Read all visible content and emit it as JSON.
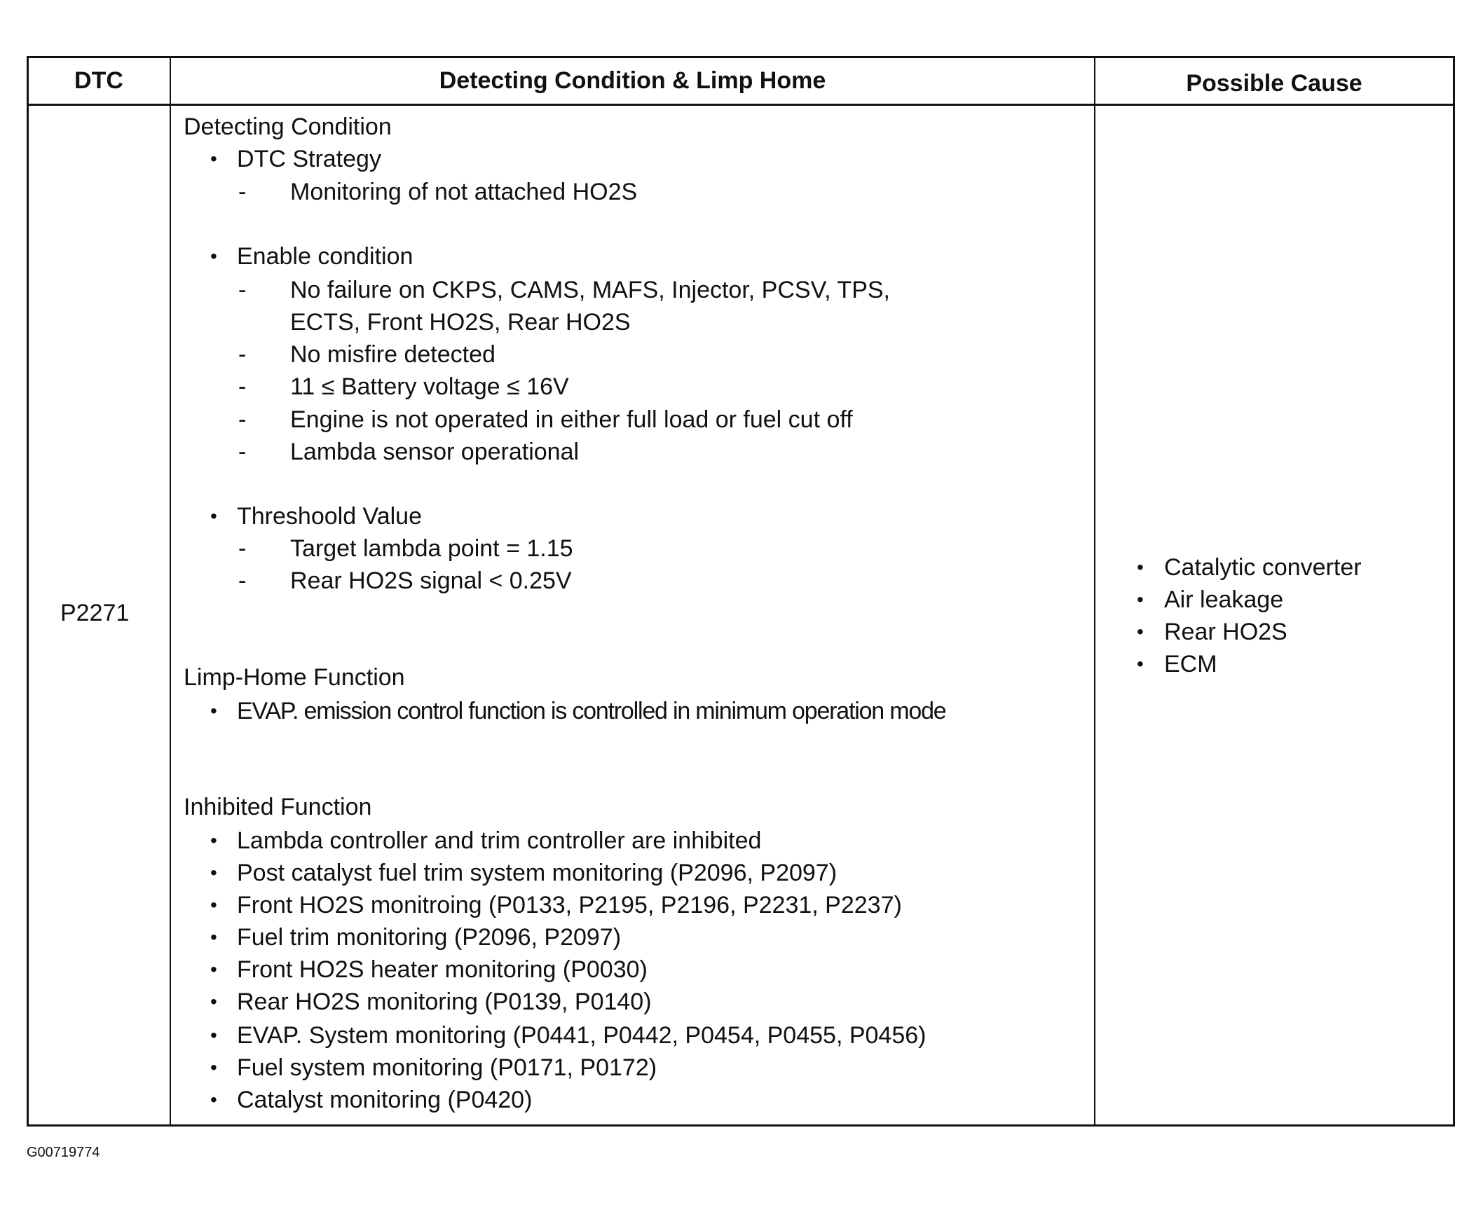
{
  "table": {
    "headers": {
      "dtc": "DTC",
      "condition": "Detecting Condition & Limp Home",
      "cause": "Possible Cause"
    },
    "row": {
      "dtc": "P2271",
      "detecting_condition": {
        "title": "Detecting Condition",
        "groups": [
          {
            "label": "DTC Strategy",
            "items": [
              "Monitoring of not attached HO2S"
            ]
          },
          {
            "label": "Enable condition",
            "items": [
              "No failure on CKPS, CAMS, MAFS, Injector, PCSV, TPS,",
              "ECTS, Front HO2S, Rear HO2S",
              "No misfire detected",
              "11 ≤ Battery voltage ≤ 16V",
              "Engine is not operated in either full load or fuel cut off",
              "Lambda sensor operational"
            ]
          },
          {
            "label": "Threshoold Value",
            "items": [
              "Target lambda point = 1.15",
              "Rear HO2S signal < 0.25V"
            ]
          }
        ]
      },
      "limp_home": {
        "title": "Limp-Home Function",
        "items": [
          "EVAP. emission control function is controlled in minimum operation mode"
        ]
      },
      "inhibited": {
        "title": "Inhibited Function",
        "items": [
          "Lambda controller and trim controller are inhibited",
          "Post catalyst fuel trim system monitoring (P2096, P2097)",
          "Front HO2S monitroing (P0133, P2195, P2196, P2231, P2237)",
          "Fuel trim monitoring (P2096, P2097)",
          "Front HO2S heater monitoring (P0030)",
          "Rear HO2S monitoring (P0139, P0140)",
          "EVAP. System monitoring (P0441, P0442, P0454, P0455, P0456)",
          "Fuel system monitoring (P0171, P0172)",
          "Catalyst monitoring (P0420)"
        ]
      },
      "possible_causes": [
        "Catalytic converter",
        "Air leakage",
        "Rear HO2S",
        "ECM"
      ]
    }
  },
  "footer": {
    "figure_id": "G00719774"
  },
  "bullet": "•",
  "dash": "-"
}
